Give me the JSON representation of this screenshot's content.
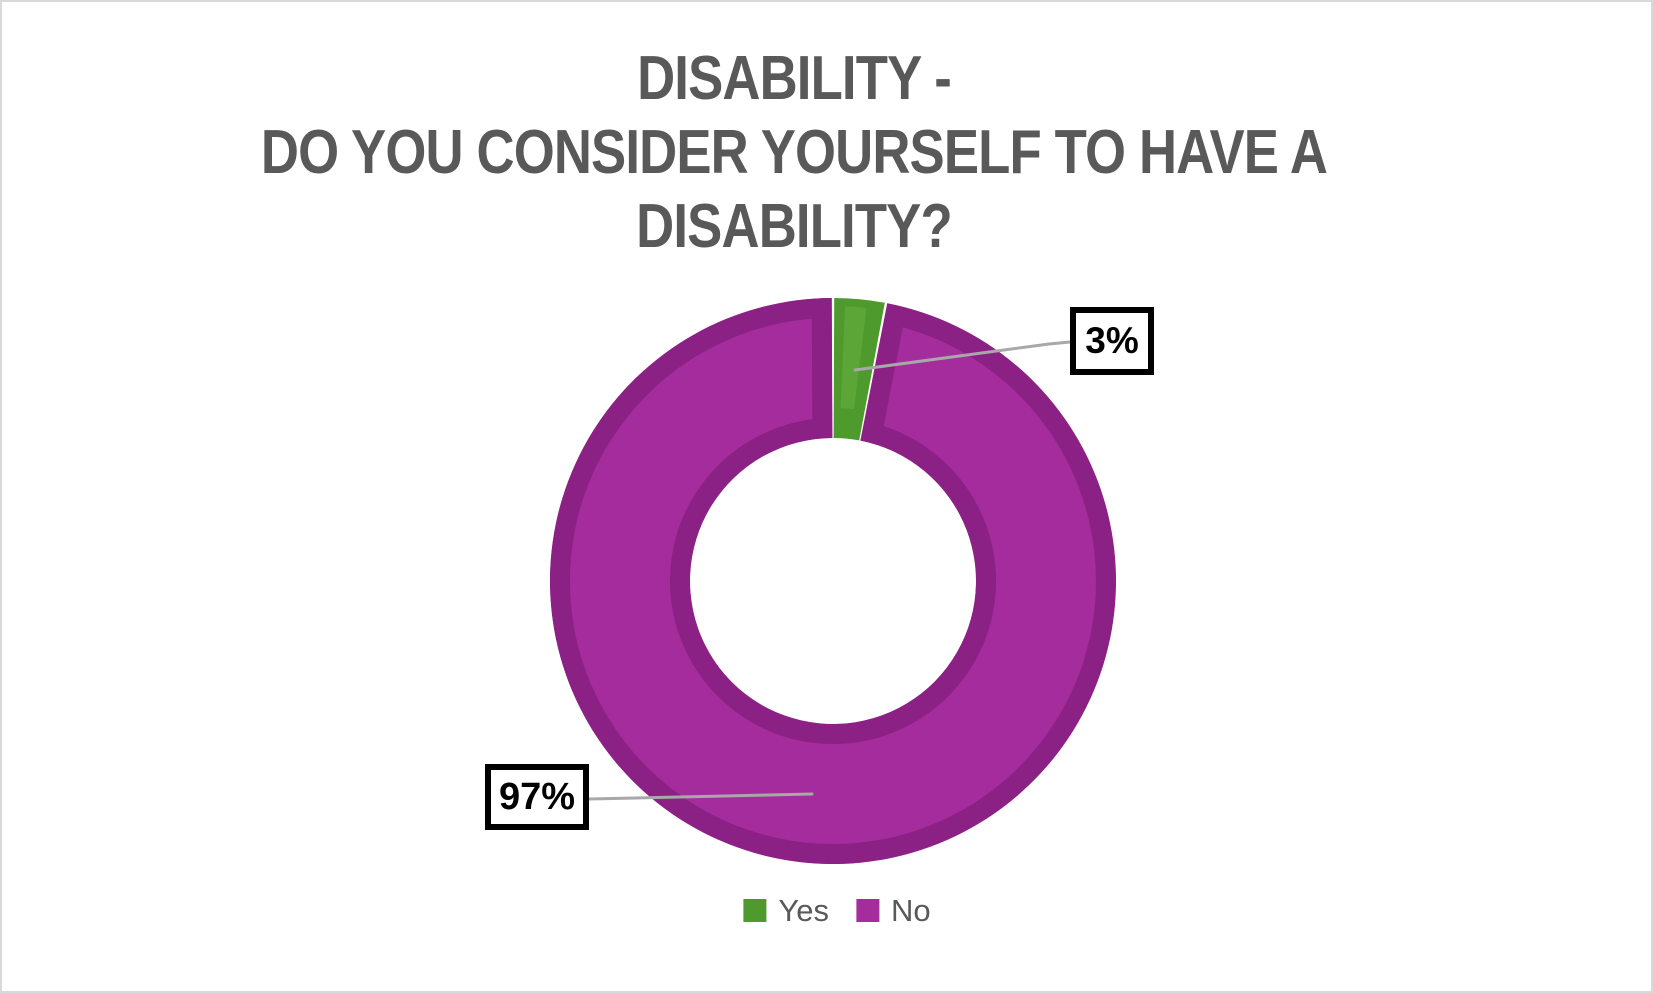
{
  "chart_data": {
    "type": "pie",
    "subtype": "donut",
    "title": "DISABILITY - DO YOU CONSIDER YOURSELF TO HAVE A DISABILITY?",
    "title_lines": [
      "DISABILITY -",
      "DO YOU CONSIDER YOURSELF TO HAVE A",
      "DISABILITY?"
    ],
    "categories": [
      "Yes",
      "No"
    ],
    "values": [
      3,
      97
    ],
    "slices": [
      {
        "label": "Yes",
        "value": 3,
        "pct_label": "3%",
        "color": "#4E9A2D",
        "highlight_color": "#6FB445"
      },
      {
        "label": "No",
        "value": 97,
        "pct_label": "97%",
        "color": "#A42C9C",
        "edge_color": "#8C2185"
      }
    ],
    "start_angle_deg": 0,
    "direction": "clockwise",
    "hole_ratio": 0.5,
    "legend_position": "bottom",
    "grid": false
  },
  "styles": {
    "title_color": "#595959",
    "legend_text_color": "#595959",
    "leader_line_color": "#A8A8A8",
    "label_box_border_color": "#000000",
    "label_text_color": "#000000",
    "background": "#FFFFFF",
    "frame_border_color": "#D9D9D9"
  }
}
